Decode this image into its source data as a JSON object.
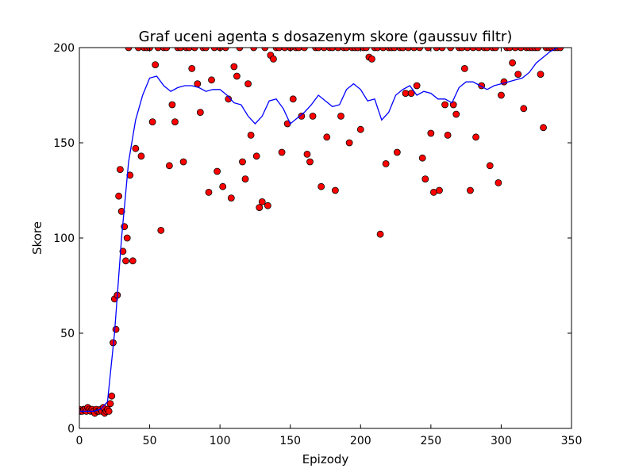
{
  "chart_data": {
    "type": "scatter",
    "title": "Graf uceni agenta s dosazenym skore (gaussuv filtr)",
    "xlabel": "Epizody",
    "ylabel": "Skore",
    "xlim": [
      0,
      350
    ],
    "ylim": [
      0,
      200
    ],
    "xticks": [
      0,
      50,
      100,
      150,
      200,
      250,
      300,
      350
    ],
    "yticks": [
      0,
      50,
      100,
      150,
      200
    ],
    "grid": false,
    "legend": "none",
    "colors": {
      "points": "#ff0000",
      "point_edge": "#000000",
      "line": "#0000ff"
    },
    "series": [
      {
        "type": "scatter",
        "x": [
          0,
          1,
          2,
          3,
          4,
          5,
          6,
          7,
          8,
          9,
          10,
          11,
          12,
          13,
          14,
          15,
          16,
          17,
          18,
          19,
          20,
          21,
          22,
          23,
          24,
          25,
          26,
          27,
          28,
          29,
          30,
          31,
          32,
          33,
          34,
          35,
          36,
          38,
          40,
          42,
          44,
          46,
          48,
          50,
          52,
          54,
          56,
          58,
          60,
          62,
          64,
          66,
          68,
          70,
          72,
          74,
          76,
          78,
          80,
          82,
          84,
          86,
          88,
          90,
          92,
          94,
          96,
          98,
          100,
          102,
          104,
          106,
          108,
          110,
          112,
          114,
          116,
          118,
          120,
          122,
          124,
          126,
          128,
          130,
          132,
          134,
          136,
          138,
          140,
          142,
          144,
          146,
          148,
          150,
          152,
          154,
          156,
          158,
          160,
          162,
          164,
          166,
          168,
          170,
          172,
          174,
          176,
          178,
          180,
          182,
          184,
          186,
          188,
          190,
          192,
          194,
          196,
          198,
          200,
          202,
          204,
          206,
          208,
          210,
          212,
          214,
          216,
          218,
          220,
          222,
          224,
          226,
          228,
          230,
          232,
          234,
          236,
          238,
          240,
          242,
          244,
          246,
          248,
          250,
          252,
          254,
          256,
          258,
          260,
          262,
          264,
          266,
          268,
          270,
          272,
          274,
          276,
          278,
          280,
          282,
          284,
          286,
          288,
          290,
          292,
          294,
          296,
          298,
          300,
          302,
          304,
          306,
          308,
          310,
          312,
          314,
          316,
          318,
          320,
          322,
          324,
          326,
          328,
          330,
          332,
          334,
          336,
          338,
          340,
          342
        ],
        "y": [
          10,
          9,
          9,
          10,
          10,
          9,
          11,
          10,
          9,
          10,
          9,
          8,
          10,
          9,
          9,
          10,
          9,
          11,
          8,
          9,
          10,
          9,
          13,
          17,
          45,
          68,
          52,
          70,
          122,
          136,
          114,
          93,
          106,
          88,
          100,
          200,
          133,
          88,
          147,
          200,
          143,
          200,
          200,
          200,
          161,
          191,
          200,
          104,
          200,
          200,
          138,
          170,
          161,
          200,
          200,
          140,
          200,
          200,
          189,
          200,
          181,
          166,
          200,
          200,
          124,
          183,
          200,
          135,
          200,
          127,
          200,
          173,
          121,
          190,
          185,
          200,
          140,
          131,
          181,
          154,
          200,
          143,
          116,
          119,
          200,
          117,
          196,
          194,
          200,
          200,
          145,
          200,
          160,
          200,
          173,
          200,
          200,
          164,
          200,
          144,
          140,
          164,
          200,
          200,
          127,
          200,
          153,
          200,
          200,
          125,
          200,
          164,
          200,
          200,
          150,
          200,
          200,
          200,
          157,
          200,
          200,
          195,
          194,
          200,
          200,
          102,
          200,
          139,
          200,
          200,
          200,
          145,
          200,
          200,
          176,
          200,
          176,
          200,
          180,
          200,
          142,
          131,
          200,
          155,
          124,
          200,
          125,
          200,
          170,
          154,
          200,
          170,
          165,
          200,
          200,
          189,
          200,
          125,
          200,
          153,
          200,
          180,
          200,
          200,
          138,
          200,
          200,
          129,
          175,
          182,
          200,
          200,
          192,
          200,
          186,
          200,
          168,
          200,
          200,
          200,
          200,
          200,
          186,
          158,
          200,
          200,
          200,
          200,
          200,
          200
        ]
      },
      {
        "type": "line",
        "x": [
          0,
          5,
          10,
          15,
          20,
          25,
          30,
          35,
          40,
          45,
          50,
          55,
          60,
          65,
          70,
          75,
          80,
          85,
          90,
          95,
          100,
          105,
          110,
          115,
          120,
          125,
          130,
          135,
          140,
          145,
          150,
          155,
          160,
          165,
          170,
          175,
          180,
          185,
          190,
          195,
          200,
          205,
          210,
          215,
          220,
          225,
          230,
          235,
          240,
          245,
          250,
          255,
          260,
          265,
          270,
          275,
          280,
          285,
          290,
          295,
          300,
          305,
          310,
          315,
          320,
          325,
          330,
          335,
          340,
          345
        ],
        "y": [
          9,
          9,
          9,
          10,
          14,
          50,
          100,
          140,
          162,
          175,
          184,
          185,
          180,
          177,
          179,
          180,
          180,
          179,
          177,
          178,
          178,
          175,
          171,
          170,
          164,
          160,
          164,
          172,
          173,
          168,
          160,
          163,
          166,
          170,
          175,
          172,
          169,
          170,
          178,
          181,
          178,
          172,
          173,
          162,
          166,
          175,
          178,
          180,
          175,
          177,
          176,
          173,
          173,
          171,
          179,
          182,
          182,
          180,
          178,
          180,
          181,
          182,
          183,
          184,
          187,
          192,
          195,
          198,
          200,
          200
        ]
      }
    ]
  }
}
